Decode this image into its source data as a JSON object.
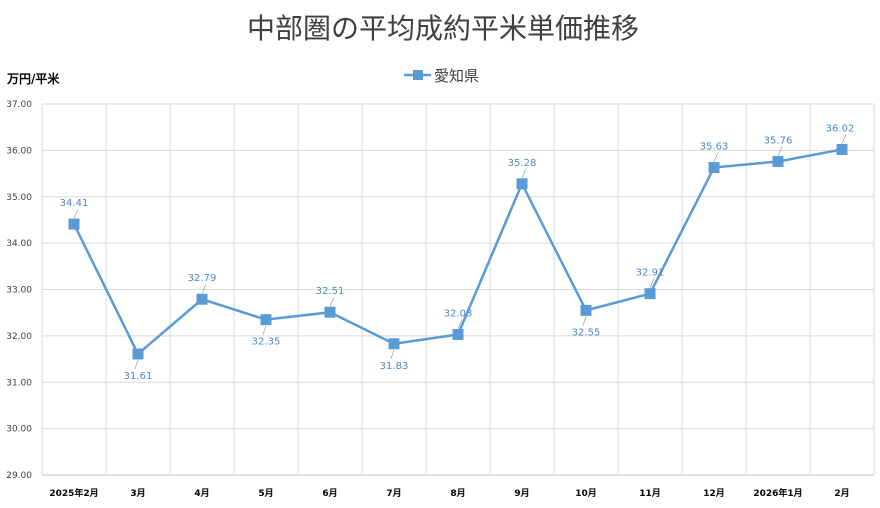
{
  "chart_data": {
    "type": "line",
    "title": "中部圏の平均成約平米単価推移",
    "ylabel": "万円/平米",
    "xlabel": "",
    "categories": [
      "2025年2月",
      "3月",
      "4月",
      "5月",
      "6月",
      "7月",
      "8月",
      "9月",
      "10月",
      "11月",
      "12月",
      "2026年1月",
      "2月"
    ],
    "series": [
      {
        "name": "愛知県",
        "values": [
          34.41,
          31.61,
          32.79,
          32.35,
          32.51,
          31.83,
          32.03,
          35.28,
          32.55,
          32.91,
          35.63,
          35.76,
          36.02
        ],
        "labels": [
          "34.41",
          "31.61",
          "32.79",
          "32.35",
          "32.51",
          "31.83",
          "32.03",
          "35.28",
          "32.55",
          "32.91",
          "35.63",
          "35.76",
          "36.02"
        ],
        "color": "#5b9bd5"
      }
    ],
    "ylim": [
      29.0,
      37.0
    ],
    "yticks": [
      "29.00",
      "30.00",
      "31.00",
      "32.00",
      "33.00",
      "34.00",
      "35.00",
      "36.00",
      "37.00"
    ],
    "grid": true,
    "legend_position": "top-center",
    "marker": "square",
    "label_color": "#4f86c6"
  }
}
